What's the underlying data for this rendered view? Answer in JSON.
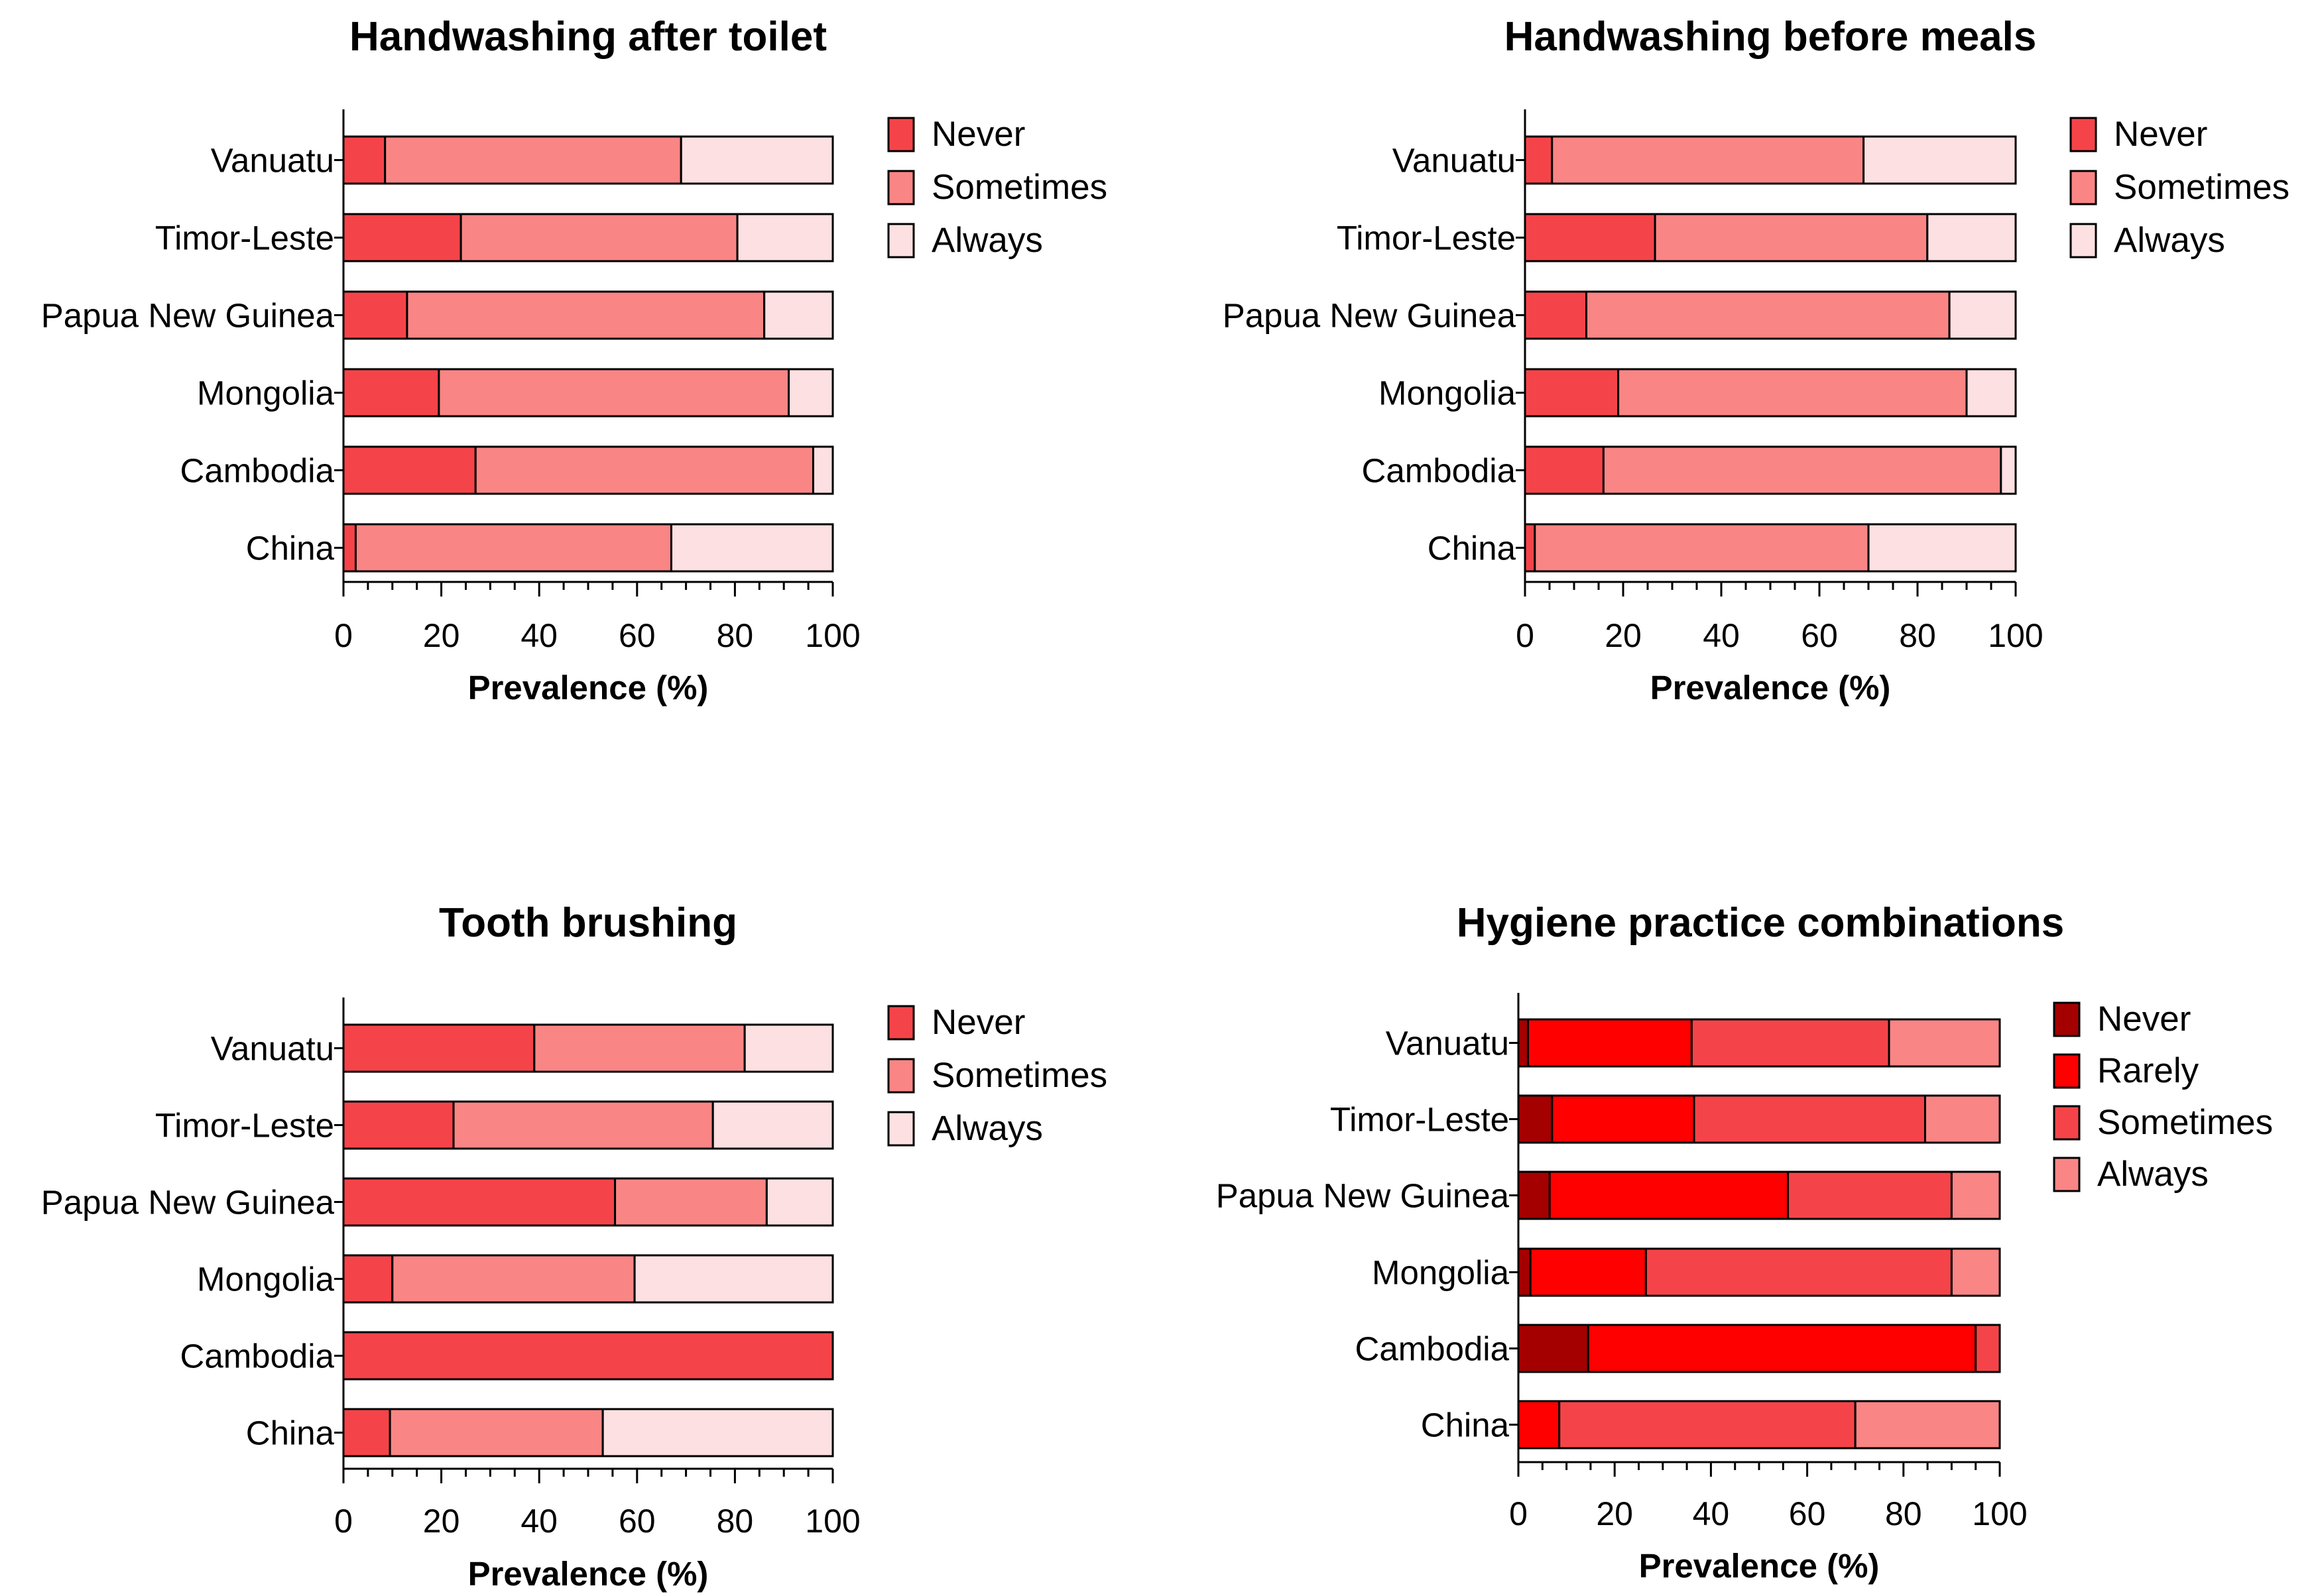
{
  "chart_data": [
    {
      "type": "bar",
      "orientation": "horizontal",
      "stacked": true,
      "title": "Handwashing after toilet",
      "xlabel": "Prevalence (%)",
      "ylabel": "",
      "xlim": [
        0,
        100
      ],
      "xticks": [
        0,
        20,
        40,
        60,
        80,
        100
      ],
      "categories": [
        "Vanuatu",
        "Timor-Leste",
        "Papua New Guinea",
        "Mongolia",
        "Cambodia",
        "China"
      ],
      "series": [
        {
          "name": "Never",
          "color": "#f54449",
          "values": [
            8.5,
            24,
            13,
            19.5,
            27,
            2.5
          ]
        },
        {
          "name": "Sometimes",
          "color": "#fa8585",
          "values": [
            60.5,
            56.5,
            73,
            71.5,
            69,
            64.5
          ]
        },
        {
          "name": "Always",
          "color": "#fde0e1",
          "values": [
            31,
            19.5,
            14,
            9,
            4,
            33
          ]
        }
      ],
      "legend": "right"
    },
    {
      "type": "bar",
      "orientation": "horizontal",
      "stacked": true,
      "title": "Handwashing before meals",
      "xlabel": "Prevalence (%)",
      "ylabel": "",
      "xlim": [
        0,
        100
      ],
      "xticks": [
        0,
        20,
        40,
        60,
        80,
        100
      ],
      "categories": [
        "Vanuatu",
        "Timor-Leste",
        "Papua New Guinea",
        "Mongolia",
        "Cambodia",
        "China"
      ],
      "series": [
        {
          "name": "Never",
          "color": "#f54449",
          "values": [
            5.5,
            26.5,
            12.5,
            19,
            16,
            2
          ]
        },
        {
          "name": "Sometimes",
          "color": "#fa8585",
          "values": [
            63.5,
            55.5,
            74,
            71,
            81,
            68
          ]
        },
        {
          "name": "Always",
          "color": "#fde0e1",
          "values": [
            31,
            18,
            13.5,
            10,
            3,
            30
          ]
        }
      ],
      "legend": "right"
    },
    {
      "type": "bar",
      "orientation": "horizontal",
      "stacked": true,
      "title": "Tooth brushing",
      "xlabel": "Prevalence (%)",
      "ylabel": "",
      "xlim": [
        0,
        100
      ],
      "xticks": [
        0,
        20,
        40,
        60,
        80,
        100
      ],
      "categories": [
        "Vanuatu",
        "Timor-Leste",
        "Papua New Guinea",
        "Mongolia",
        "Cambodia",
        "China"
      ],
      "series": [
        {
          "name": "Never",
          "color": "#f54449",
          "values": [
            39,
            22.5,
            55.5,
            10,
            100,
            9.5
          ]
        },
        {
          "name": "Sometimes",
          "color": "#fa8585",
          "values": [
            43,
            53,
            31,
            49.5,
            0,
            43.5
          ]
        },
        {
          "name": "Always",
          "color": "#fde0e1",
          "values": [
            18,
            24.5,
            13.5,
            40.5,
            0,
            47
          ]
        }
      ],
      "legend": "right"
    },
    {
      "type": "bar",
      "orientation": "horizontal",
      "stacked": true,
      "title": "Hygiene practice combinations",
      "xlabel": "Prevalence (%)",
      "ylabel": "",
      "xlim": [
        0,
        100
      ],
      "xticks": [
        0,
        20,
        40,
        60,
        80,
        100
      ],
      "categories": [
        "Vanuatu",
        "Timor-Leste",
        "Papua New Guinea",
        "Mongolia",
        "Cambodia",
        "China"
      ],
      "series": [
        {
          "name": "Never",
          "color": "#a40000",
          "values": [
            2,
            7,
            6.5,
            2.5,
            14.5,
            0
          ]
        },
        {
          "name": "Rarely",
          "color": "#fe0000",
          "values": [
            34,
            29.5,
            49.5,
            24,
            80.5,
            8.5
          ]
        },
        {
          "name": "Sometimes",
          "color": "#f54449",
          "values": [
            41,
            48,
            34,
            63.5,
            5,
            61.5
          ]
        },
        {
          "name": "Always",
          "color": "#fa8585",
          "values": [
            23,
            15.5,
            10,
            10,
            0,
            30
          ]
        }
      ],
      "legend": "right"
    }
  ]
}
